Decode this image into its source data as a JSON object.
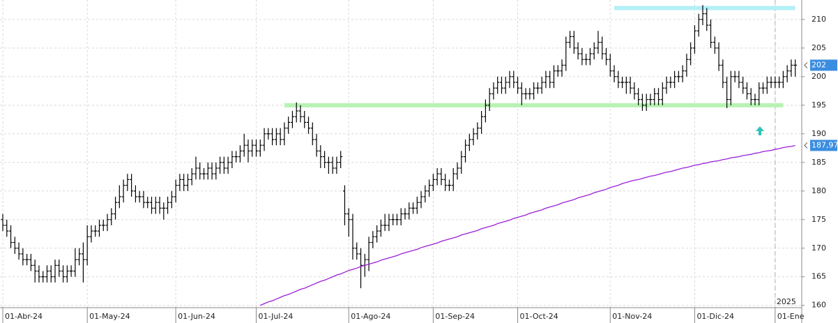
{
  "chart_data": {
    "type": "ohlc",
    "categories": [
      "01-Abr-24",
      null,
      null,
      null,
      null,
      null,
      null,
      null,
      null,
      null,
      null,
      null,
      null,
      null,
      null,
      null,
      null,
      null,
      null,
      null,
      null,
      "01-May-24",
      null,
      null,
      null,
      null,
      null,
      null,
      null,
      null,
      null,
      null,
      null,
      null,
      null,
      null,
      null,
      null,
      null,
      null,
      null,
      null,
      null,
      "01-Jun-24",
      null,
      null,
      null,
      null,
      null,
      null,
      null,
      null,
      null,
      null,
      null,
      null,
      null,
      null,
      null,
      null,
      null,
      null,
      null,
      "01-Jul-24",
      null,
      null,
      null,
      null,
      null,
      null,
      null,
      null,
      null,
      null,
      null,
      null,
      null,
      null,
      null,
      null,
      null,
      null,
      null,
      null,
      null,
      null,
      "01-Ago-24",
      null,
      null,
      null,
      null,
      null,
      null,
      null,
      null,
      null,
      null,
      null,
      null,
      null,
      null,
      null,
      null,
      null,
      null,
      null,
      null,
      "01-Sep-24",
      null,
      null,
      null,
      null,
      null,
      null,
      null,
      null,
      null,
      null,
      null,
      null,
      null,
      null,
      null,
      null,
      null,
      null,
      null,
      null,
      "01-Oct-24",
      null,
      null,
      null,
      null,
      null,
      null,
      null,
      null,
      null,
      null,
      null,
      null,
      null,
      null,
      null,
      null,
      null,
      null,
      null,
      null,
      null,
      null,
      "01-Nov-24",
      null,
      null,
      null,
      null,
      null,
      null,
      null,
      null,
      null,
      null,
      null,
      null,
      null,
      null,
      null,
      null,
      null,
      null,
      null,
      null,
      "01-Dic-24",
      null,
      null,
      null,
      null,
      null,
      null,
      null,
      null,
      null,
      null,
      null,
      null,
      null,
      null,
      null,
      null,
      null,
      null,
      null,
      "01-Ene",
      null,
      null,
      null,
      null,
      null
    ],
    "open": [
      175,
      174,
      173,
      171,
      170,
      169,
      168,
      168,
      167,
      166,
      165,
      165,
      166,
      165,
      167,
      166,
      165,
      166,
      166,
      168,
      169,
      168,
      172,
      173,
      173,
      174,
      174,
      175,
      176,
      178,
      179,
      181,
      182,
      180,
      179,
      179,
      178,
      178,
      177,
      178,
      177,
      177,
      178,
      179,
      181,
      182,
      181,
      182,
      183,
      184,
      183,
      183,
      184,
      183,
      184,
      185,
      184,
      185,
      186,
      186,
      187,
      188,
      187,
      188,
      187,
      188,
      190,
      190,
      189,
      190,
      189,
      191,
      192,
      193,
      194,
      193,
      192,
      191,
      189,
      187,
      186,
      185,
      185,
      184,
      185,
      180,
      176,
      175,
      170,
      169,
      167,
      168,
      171,
      172,
      173,
      174,
      174,
      175,
      175,
      175,
      176,
      176,
      177,
      177,
      178,
      179,
      180,
      181,
      182,
      183,
      182,
      181,
      181,
      183,
      184,
      186,
      188,
      189,
      190,
      191,
      193,
      195,
      197,
      198,
      199,
      198,
      199,
      200,
      199,
      198,
      197,
      197,
      197,
      198,
      198,
      199,
      200,
      199,
      201,
      201,
      202,
      206,
      207,
      205,
      204,
      203,
      203,
      204,
      205,
      206,
      204,
      203,
      201,
      200,
      199,
      199,
      199,
      198,
      197,
      196,
      195,
      196,
      196,
      197,
      196,
      198,
      199,
      199,
      200,
      200,
      201,
      203,
      205,
      208,
      210,
      211,
      209,
      206,
      205,
      202,
      199,
      196,
      200,
      200,
      199,
      198,
      197,
      196,
      196,
      198,
      198,
      199,
      199,
      199,
      199,
      200,
      201,
      202
    ],
    "high": [
      176,
      175,
      174,
      172,
      171,
      170,
      169,
      169,
      168,
      167,
      166,
      167,
      167,
      168,
      168,
      167,
      167,
      167,
      170,
      170,
      171,
      174,
      174,
      174,
      175,
      175,
      176,
      177,
      179,
      181,
      182,
      183,
      183,
      181,
      180,
      180,
      179,
      179,
      179,
      179,
      178,
      179,
      180,
      182,
      183,
      183,
      183,
      184,
      186,
      185,
      184,
      185,
      185,
      185,
      186,
      186,
      186,
      187,
      187,
      188,
      190,
      189,
      189,
      189,
      189,
      191,
      191,
      191,
      191,
      191,
      192,
      193,
      194,
      195.5,
      195,
      194,
      193,
      192,
      190,
      188,
      187,
      186,
      186,
      186,
      187,
      181,
      177,
      176,
      171,
      170,
      169,
      172,
      173,
      174,
      175,
      176,
      176,
      176,
      176,
      177,
      177,
      178,
      178,
      179,
      180,
      181,
      182,
      183,
      184,
      184,
      183,
      182,
      184,
      185,
      187,
      189,
      190,
      191,
      192,
      194,
      196,
      198,
      199,
      200,
      200,
      200,
      201,
      201,
      200,
      199,
      198,
      198,
      199,
      199,
      200,
      201,
      201,
      202,
      202,
      203,
      207,
      208,
      208,
      206,
      205,
      204,
      205,
      206,
      208,
      207,
      205,
      204,
      202,
      201,
      200,
      200,
      200,
      199,
      198,
      197,
      197,
      197,
      198,
      198,
      199,
      200,
      200,
      201,
      201,
      202,
      204,
      206,
      209,
      211,
      212.5,
      212,
      210,
      207,
      206,
      203,
      200,
      201,
      201,
      201,
      200,
      199,
      198,
      197,
      199,
      199,
      200,
      200,
      200,
      200,
      201,
      202,
      203,
      203
    ],
    "low": [
      173,
      172,
      170,
      169,
      168,
      167,
      167,
      166,
      164,
      164,
      164,
      164,
      164,
      164,
      165,
      164,
      164,
      165,
      165,
      167,
      164,
      167,
      171,
      172,
      172,
      173,
      173,
      174,
      175,
      177,
      178,
      180,
      179,
      178,
      178,
      177,
      177,
      176,
      176,
      176,
      175,
      176,
      177,
      178,
      180,
      180,
      180,
      181,
      182,
      182,
      182,
      182,
      182,
      182,
      183,
      183,
      183,
      184,
      185,
      185,
      186,
      185,
      186,
      186,
      186,
      187,
      189,
      188,
      188,
      188,
      188,
      190,
      191,
      192,
      192,
      191,
      190,
      188,
      186,
      184,
      184,
      183,
      183,
      183,
      184,
      174,
      172,
      168,
      168,
      163,
      165,
      166,
      170,
      171,
      172,
      173,
      173,
      174,
      174,
      174,
      175,
      175,
      176,
      176,
      177,
      178,
      179,
      180,
      181,
      181,
      180,
      180,
      180,
      182,
      183,
      185,
      187,
      188,
      189,
      190,
      192,
      194,
      196,
      197,
      197,
      197,
      198,
      198,
      197,
      195,
      196,
      196,
      196,
      197,
      197,
      198,
      198,
      198,
      200,
      200,
      201,
      205,
      204,
      203,
      202,
      202,
      202,
      203,
      204,
      203,
      202,
      200,
      199,
      198,
      198,
      197,
      197,
      196,
      195,
      194,
      194,
      195,
      195,
      195,
      195,
      197,
      198,
      198,
      199,
      199,
      200,
      202,
      204,
      207,
      209,
      208,
      205,
      204,
      201,
      198,
      194.5,
      195,
      199,
      198,
      197,
      196,
      195,
      195,
      195,
      197,
      197,
      198,
      198,
      198,
      198,
      199,
      200,
      200
    ],
    "close": [
      174,
      173,
      171,
      170,
      169,
      168,
      168,
      167,
      166,
      165,
      165,
      166,
      165,
      167,
      166,
      165,
      166,
      166,
      168,
      169,
      168,
      172,
      173,
      173,
      174,
      174,
      175,
      176,
      178,
      179,
      181,
      182,
      180,
      179,
      179,
      178,
      178,
      177,
      178,
      177,
      177,
      178,
      179,
      181,
      182,
      181,
      182,
      183,
      184,
      183,
      183,
      184,
      183,
      184,
      185,
      184,
      185,
      186,
      186,
      187,
      188,
      187,
      188,
      187,
      188,
      190,
      190,
      189,
      190,
      189,
      191,
      192,
      193,
      194,
      193,
      192,
      191,
      189,
      187,
      186,
      185,
      185,
      184,
      185,
      186,
      176,
      175,
      170,
      169,
      167,
      168,
      171,
      172,
      173,
      174,
      174,
      175,
      175,
      175,
      176,
      176,
      177,
      177,
      178,
      179,
      180,
      181,
      182,
      183,
      182,
      181,
      181,
      183,
      184,
      186,
      188,
      189,
      190,
      191,
      193,
      195,
      197,
      198,
      199,
      198,
      199,
      200,
      199,
      198,
      197,
      197,
      197,
      198,
      198,
      199,
      200,
      199,
      201,
      201,
      202,
      206,
      207,
      205,
      204,
      203,
      203,
      204,
      205,
      206,
      204,
      203,
      201,
      200,
      199,
      199,
      199,
      198,
      197,
      196,
      195,
      196,
      196,
      197,
      196,
      198,
      199,
      199,
      200,
      200,
      201,
      203,
      205,
      208,
      210,
      211,
      209,
      206,
      205,
      202,
      199,
      196,
      200,
      200,
      199,
      198,
      197,
      196,
      196,
      198,
      198,
      199,
      199,
      199,
      199,
      200,
      201,
      202,
      202
    ],
    "color": "#000000",
    "overlays": [
      {
        "color": "#9b1fd8",
        "values": [
          null,
          null,
          null,
          null,
          null,
          null,
          null,
          null,
          null,
          null,
          null,
          null,
          null,
          null,
          null,
          null,
          null,
          null,
          null,
          null,
          null,
          null,
          null,
          null,
          null,
          null,
          null,
          null,
          null,
          null,
          null,
          null,
          null,
          null,
          null,
          null,
          null,
          null,
          null,
          null,
          null,
          null,
          null,
          null,
          null,
          null,
          null,
          null,
          null,
          null,
          null,
          null,
          null,
          null,
          null,
          null,
          null,
          null,
          null,
          null,
          null,
          null,
          null,
          null,
          160.0,
          160.3,
          160.6,
          160.8,
          161.1,
          161.4,
          161.7,
          161.9,
          162.2,
          162.5,
          162.8,
          163.0,
          163.3,
          163.6,
          163.9,
          164.2,
          164.4,
          164.7,
          165.0,
          165.3,
          165.5,
          165.8,
          166.1,
          166.3,
          166.5,
          166.8,
          167.0,
          167.2,
          167.4,
          167.6,
          167.9,
          168.1,
          168.3,
          168.5,
          168.7,
          169.0,
          169.2,
          169.4,
          169.6,
          169.8,
          170.1,
          170.3,
          170.5,
          170.7,
          170.9,
          171.2,
          171.4,
          171.6,
          171.8,
          172.0,
          172.3,
          172.5,
          172.7,
          172.9,
          173.1,
          173.4,
          173.6,
          173.8,
          174.0,
          174.3,
          174.5,
          174.7,
          174.9,
          175.2,
          175.4,
          175.6,
          175.8,
          176.1,
          176.3,
          176.5,
          176.7,
          177.0,
          177.2,
          177.4,
          177.6,
          177.9,
          178.1,
          178.3,
          178.5,
          178.8,
          179.0,
          179.2,
          179.4,
          179.7,
          179.9,
          180.1,
          180.3,
          180.6,
          180.8,
          181.0,
          181.3,
          181.5,
          181.7,
          181.9,
          182.0,
          182.2,
          182.4,
          182.6,
          182.7,
          182.9,
          183.1,
          183.3,
          183.4,
          183.6,
          183.8,
          184.0,
          184.1,
          184.3,
          184.5,
          184.6,
          184.8,
          184.9,
          185.1,
          185.2,
          185.3,
          185.5,
          185.6,
          185.8,
          185.9,
          186.0,
          186.2,
          186.3,
          186.4,
          186.6,
          186.7,
          186.9,
          187.0,
          187.1,
          187.3,
          187.4,
          187.6,
          187.7,
          187.8,
          187.97
        ]
      }
    ],
    "levels": [
      {
        "value": 195,
        "from": 70,
        "to": 194,
        "color": "#b8f2b3"
      },
      {
        "value": 212,
        "from": 152,
        "to": 197,
        "color": "#b3eff6"
      }
    ],
    "price_labels": [
      {
        "value": 202,
        "label": "202"
      },
      {
        "value": 187.97,
        "label": "187,97"
      }
    ],
    "price_label_color": "#3b8de0",
    "year_marker": {
      "label": "2025",
      "at": 192
    },
    "ylim": [
      159.6,
      213.4
    ],
    "yticks": [
      160,
      165,
      170,
      175,
      180,
      185,
      190,
      195,
      200,
      205,
      210
    ],
    "grid": true
  }
}
